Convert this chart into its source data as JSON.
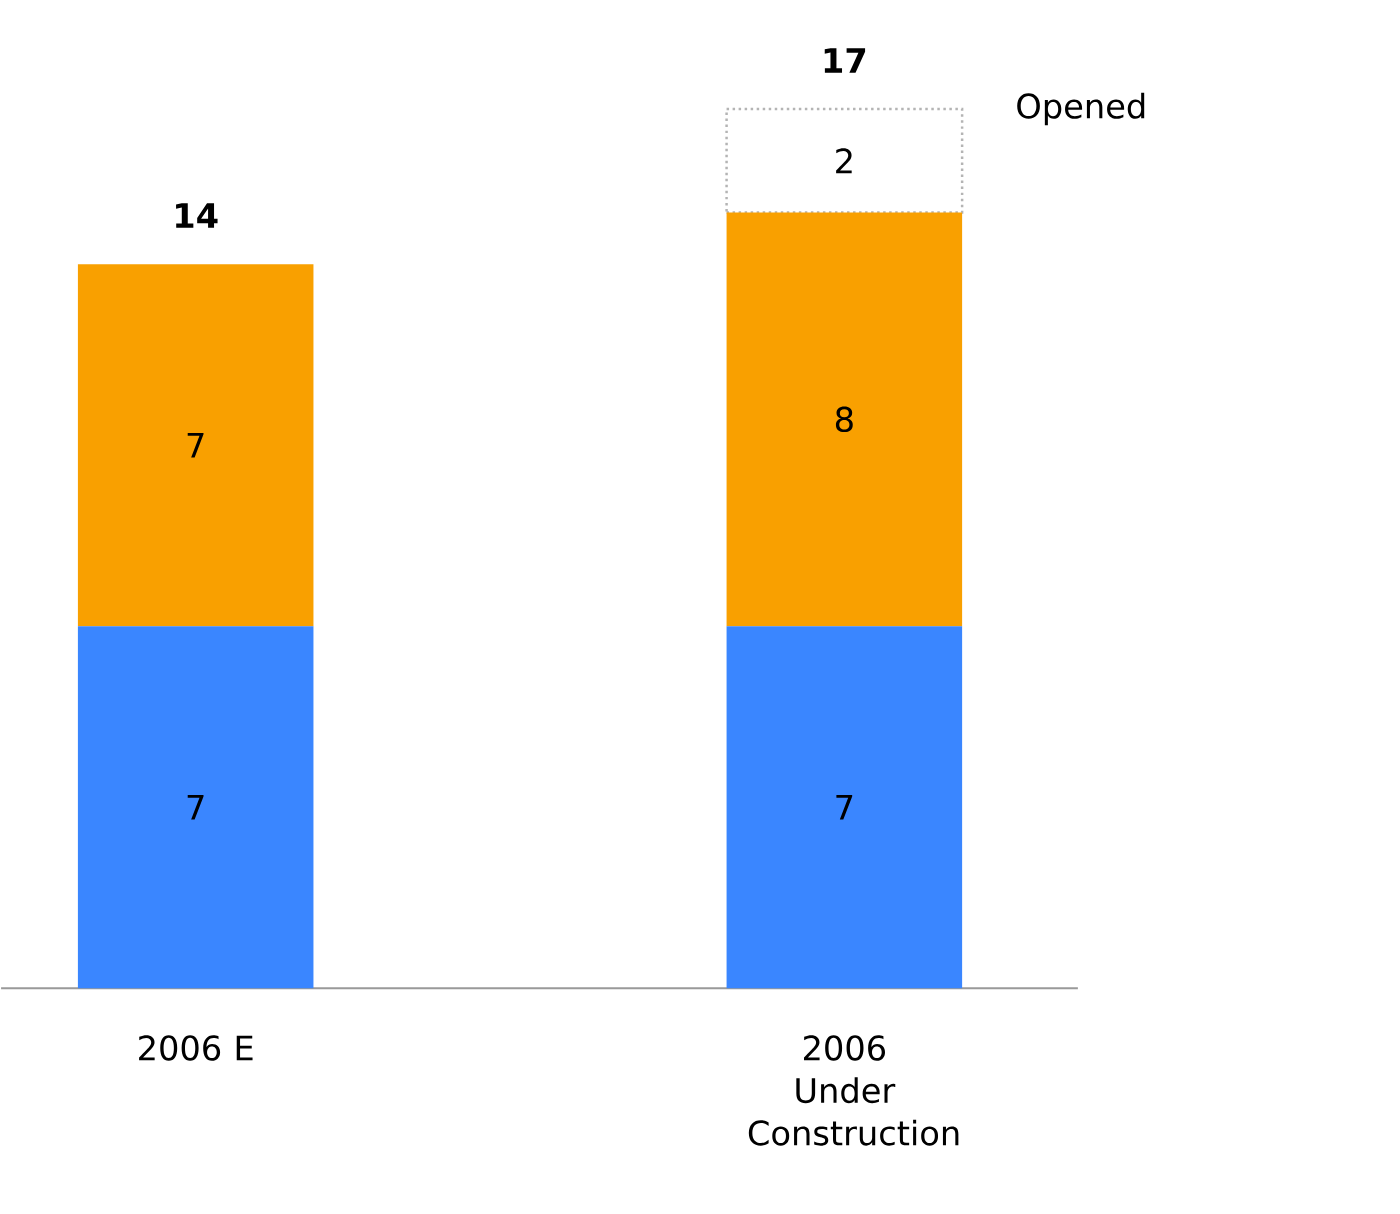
{
  "chart_data": {
    "type": "bar",
    "stacked": true,
    "data_labels": true,
    "categories": [
      "2006 E",
      "2006 Under Construction"
    ],
    "series": [
      {
        "color": "#3a86ff",
        "values": [
          7,
          7
        ]
      },
      {
        "color": "#f9a000",
        "values": [
          7,
          8
        ]
      },
      {
        "name": "Opened",
        "color": "#b4b4b4",
        "values": [
          null,
          2
        ]
      }
    ],
    "totals": [
      "14",
      "17"
    ]
  }
}
